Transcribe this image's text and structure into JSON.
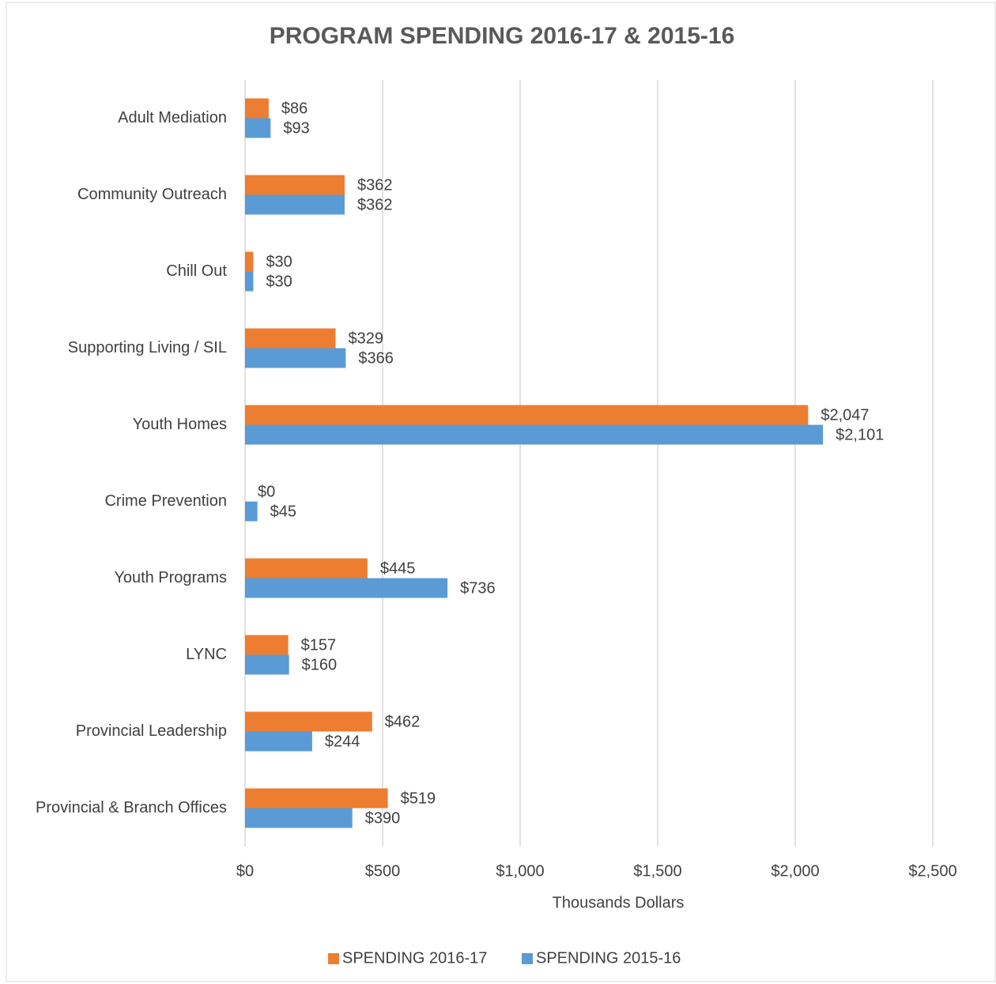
{
  "chart_data": {
    "type": "hbar",
    "title": "PROGRAM SPENDING 2016-17 & 2015-16",
    "x_label": "Thousands Dollars",
    "categories": [
      "Adult Mediation",
      "Community Outreach",
      "Chill Out",
      "Supporting Living / SIL",
      "Youth Homes",
      "Crime Prevention",
      "Youth Programs",
      "LYNC",
      "Provincial Leadership",
      "Provincial & Branch Offices"
    ],
    "series": [
      {
        "name": "SPENDING 2016-17",
        "color": "#ED7D31",
        "values": [
          86,
          362,
          30,
          329,
          2047,
          0,
          445,
          157,
          462,
          519
        ],
        "value_labels": [
          "$86",
          "$362",
          "$30",
          "$329",
          "$2,047",
          "$0",
          "$445",
          "$157",
          "$462",
          "$519"
        ]
      },
      {
        "name": "SPENDING 2015-16",
        "color": "#5B9BD5",
        "values": [
          93,
          362,
          30,
          366,
          2101,
          45,
          736,
          160,
          244,
          390
        ],
        "value_labels": [
          "$93",
          "$362",
          "$30",
          "$366",
          "$2,101",
          "$45",
          "$736",
          "$160",
          "$244",
          "$390"
        ]
      }
    ],
    "xlim": [
      0,
      2500
    ],
    "xticks": [
      {
        "value": 0,
        "label": "$0"
      },
      {
        "value": 500,
        "label": "$500"
      },
      {
        "value": 1000,
        "label": "$1,000"
      },
      {
        "value": 1500,
        "label": "$1,500"
      },
      {
        "value": 2000,
        "label": "$2,000"
      },
      {
        "value": 2500,
        "label": "$2,500"
      }
    ],
    "grid": true,
    "legend": "bottom"
  }
}
